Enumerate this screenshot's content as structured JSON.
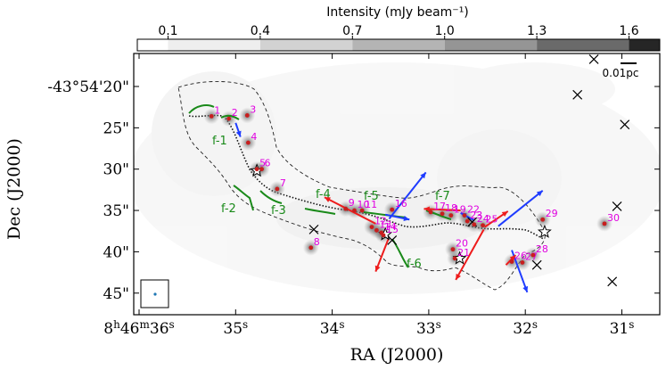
{
  "chart_data": {
    "type": "image",
    "colorbar": {
      "title": "Intensity (mJy beam⁻¹)",
      "ticks": [
        "0.1",
        "0.4",
        "0.7",
        "1.0",
        "1.3",
        "1.6"
      ],
      "range": [
        0.0,
        1.7
      ]
    },
    "xlabel": "RA (J2000)",
    "ylabel": "Dec (J2000)",
    "x_ticks": [
      {
        "label": "8h46m36s",
        "sec": 36
      },
      {
        "label": "35s",
        "sec": 35
      },
      {
        "label": "34s",
        "sec": 34
      },
      {
        "label": "33s",
        "sec": 33
      },
      {
        "label": "32s",
        "sec": 32
      },
      {
        "label": "31s",
        "sec": 31
      }
    ],
    "y_ticks": [
      {
        "label": "-43°54'20\"",
        "arcsec": 20
      },
      {
        "label": "25\"",
        "arcsec": 25
      },
      {
        "label": "30\"",
        "arcsec": 30
      },
      {
        "label": "35\"",
        "arcsec": 35
      },
      {
        "label": "40\"",
        "arcsec": 40
      },
      {
        "label": "45\"",
        "arcsec": 45
      }
    ],
    "scale_bar": "0.01pc",
    "sources": [
      {
        "id": "1",
        "ra": 35.25,
        "dec": 23.6
      },
      {
        "id": "2",
        "ra": 35.07,
        "dec": 23.9
      },
      {
        "id": "3",
        "ra": 34.88,
        "dec": 23.5
      },
      {
        "id": "4",
        "ra": 34.87,
        "dec": 26.8
      },
      {
        "id": "5",
        "ra": 34.78,
        "dec": 30.0
      },
      {
        "id": "6",
        "ra": 34.73,
        "dec": 30.0
      },
      {
        "id": "7",
        "ra": 34.57,
        "dec": 32.4
      },
      {
        "id": "8",
        "ra": 34.22,
        "dec": 39.5
      },
      {
        "id": "9",
        "ra": 33.86,
        "dec": 34.8
      },
      {
        "id": "10",
        "ra": 33.77,
        "dec": 35.0
      },
      {
        "id": "11",
        "ra": 33.69,
        "dec": 35.0
      },
      {
        "id": "12",
        "ra": 33.59,
        "dec": 37.0
      },
      {
        "id": "13",
        "ra": 33.54,
        "dec": 37.4
      },
      {
        "id": "14",
        "ra": 33.49,
        "dec": 37.7
      },
      {
        "id": "15",
        "ra": 33.47,
        "dec": 38.0
      },
      {
        "id": "16",
        "ra": 33.38,
        "dec": 34.9
      },
      {
        "id": "17",
        "ra": 32.98,
        "dec": 35.2
      },
      {
        "id": "18",
        "ra": 32.86,
        "dec": 35.4
      },
      {
        "id": "19",
        "ra": 32.77,
        "dec": 35.6
      },
      {
        "id": "20",
        "ra": 32.75,
        "dec": 39.7
      },
      {
        "id": "21",
        "ra": 32.73,
        "dec": 40.8
      },
      {
        "id": "22",
        "ra": 32.63,
        "dec": 35.6
      },
      {
        "id": "23",
        "ra": 32.6,
        "dec": 36.3
      },
      {
        "id": "24",
        "ra": 32.53,
        "dec": 36.7
      },
      {
        "id": "25",
        "ra": 32.44,
        "dec": 36.8
      },
      {
        "id": "26",
        "ra": 32.14,
        "dec": 41.2
      },
      {
        "id": "27",
        "ra": 32.03,
        "dec": 41.3
      },
      {
        "id": "28",
        "ra": 31.92,
        "dec": 40.4
      },
      {
        "id": "29",
        "ra": 31.82,
        "dec": 36.1
      },
      {
        "id": "30",
        "ra": 31.18,
        "dec": 36.6
      }
    ],
    "filaments": [
      {
        "id": "f-1"
      },
      {
        "id": "f-2"
      },
      {
        "id": "f-3"
      },
      {
        "id": "f-4"
      },
      {
        "id": "f-5"
      },
      {
        "id": "f-6"
      },
      {
        "id": "f-7"
      }
    ],
    "crosses": [
      {
        "ra": 31.29,
        "dec": 16.7
      },
      {
        "ra": 31.46,
        "dec": 21.0
      },
      {
        "ra": 30.97,
        "dec": 24.6
      },
      {
        "ra": 31.05,
        "dec": 34.5
      },
      {
        "ra": 34.19,
        "dec": 37.3
      },
      {
        "ra": 33.38,
        "dec": 38.6
      },
      {
        "ra": 32.55,
        "dec": 36.4
      },
      {
        "ra": 31.88,
        "dec": 41.6
      },
      {
        "ra": 31.1,
        "dec": 43.6
      }
    ],
    "stars": [
      {
        "ra": 34.78,
        "dec": 30.2
      },
      {
        "ra": 33.45,
        "dec": 37.9
      },
      {
        "ra": 32.68,
        "dec": 40.8
      },
      {
        "ra": 31.8,
        "dec": 37.6
      }
    ],
    "outflows": [
      {
        "color": "blue",
        "from": [
          35.0,
          24.4
        ],
        "to": [
          34.95,
          26.1
        ]
      },
      {
        "color": "red",
        "from": [
          33.55,
          36.6
        ],
        "to": [
          34.08,
          33.4
        ]
      },
      {
        "color": "blue",
        "from": [
          33.45,
          35.5
        ],
        "to": [
          33.2,
          36.1
        ]
      },
      {
        "color": "blue",
        "from": [
          33.41,
          36.0
        ],
        "to": [
          33.03,
          30.4
        ]
      },
      {
        "color": "red",
        "from": [
          33.42,
          38.5
        ],
        "to": [
          33.55,
          42.4
        ]
      },
      {
        "color": "red",
        "from": [
          32.67,
          35.0
        ],
        "to": [
          33.05,
          34.8
        ]
      },
      {
        "color": "blue",
        "from": [
          32.53,
          36.2
        ],
        "to": [
          32.67,
          35.3
        ]
      },
      {
        "color": "red",
        "from": [
          32.42,
          37.0
        ],
        "to": [
          32.18,
          35.1
        ]
      },
      {
        "color": "red",
        "from": [
          32.43,
          37.3
        ],
        "to": [
          32.72,
          43.4
        ]
      },
      {
        "color": "blue",
        "from": [
          32.28,
          36.9
        ],
        "to": [
          31.82,
          32.6
        ]
      },
      {
        "color": "blue",
        "from": [
          32.14,
          39.8
        ],
        "to": [
          31.98,
          44.9
        ]
      },
      {
        "color": "red",
        "from": [
          32.2,
          41.6
        ],
        "to": [
          32.1,
          40.4
        ]
      }
    ]
  }
}
